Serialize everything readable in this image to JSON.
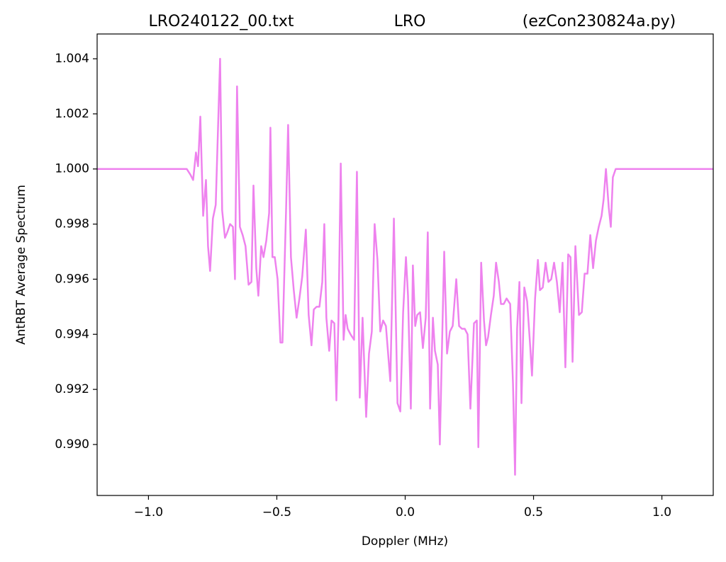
{
  "chart_data": {
    "type": "line",
    "title": [
      "LRO240122_00.txt",
      "LRO",
      "(ezCon230824a.py)"
    ],
    "x_label": "Doppler (MHz)",
    "y_label": "AntRBT Average Spectrum",
    "xlim": [
      -1.2,
      1.2
    ],
    "ylim": [
      0.98815,
      1.0049
    ],
    "xticks": [
      {
        "value": -1,
        "label": "−1.0"
      },
      {
        "value": -0.5,
        "label": "−0.5"
      },
      {
        "value": 0,
        "label": "0.0"
      },
      {
        "value": 0.5,
        "label": "0.5"
      },
      {
        "value": 1,
        "label": "1.0"
      }
    ],
    "yticks": [
      {
        "value": 0.99,
        "label": "0.990"
      },
      {
        "value": 0.992,
        "label": "0.992"
      },
      {
        "value": 0.994,
        "label": "0.994"
      },
      {
        "value": 0.996,
        "label": "0.996"
      },
      {
        "value": 0.998,
        "label": "0.998"
      },
      {
        "value": 1,
        "label": "1.000"
      },
      {
        "value": 1.002,
        "label": "1.002"
      },
      {
        "value": 1.004,
        "label": "1.004"
      }
    ],
    "grid": false,
    "series": [
      {
        "color": "#ee82ee",
        "x": [
          -1.2,
          -0.851,
          -0.837,
          -0.826,
          -0.815,
          -0.807,
          -0.798,
          -0.787,
          -0.776,
          -0.768,
          -0.76,
          -0.749,
          -0.738,
          -0.721,
          -0.713,
          -0.702,
          -0.693,
          -0.682,
          -0.671,
          -0.663,
          -0.655,
          -0.644,
          -0.633,
          -0.622,
          -0.61,
          -0.599,
          -0.591,
          -0.58,
          -0.572,
          -0.561,
          -0.552,
          -0.541,
          -0.53,
          -0.525,
          -0.517,
          -0.508,
          -0.497,
          -0.486,
          -0.478,
          -0.464,
          -0.456,
          -0.445,
          -0.434,
          -0.423,
          -0.412,
          -0.401,
          -0.387,
          -0.376,
          -0.365,
          -0.356,
          -0.345,
          -0.334,
          -0.323,
          -0.315,
          -0.307,
          -0.296,
          -0.287,
          -0.276,
          -0.268,
          -0.26,
          -0.251,
          -0.24,
          -0.232,
          -0.224,
          -0.213,
          -0.199,
          -0.188,
          -0.177,
          -0.166,
          -0.152,
          -0.141,
          -0.13,
          -0.119,
          -0.108,
          -0.097,
          -0.086,
          -0.075,
          -0.058,
          -0.044,
          -0.03,
          -0.019,
          -0.008,
          0.003,
          0.011,
          0.022,
          0.03,
          0.039,
          0.047,
          0.058,
          0.069,
          0.08,
          0.088,
          0.097,
          0.108,
          0.116,
          0.127,
          0.135,
          0.144,
          0.152,
          0.163,
          0.174,
          0.185,
          0.199,
          0.21,
          0.221,
          0.232,
          0.243,
          0.254,
          0.268,
          0.279,
          0.285,
          0.296,
          0.307,
          0.315,
          0.323,
          0.334,
          0.345,
          0.354,
          0.365,
          0.373,
          0.384,
          0.395,
          0.409,
          0.42,
          0.428,
          0.436,
          0.445,
          0.453,
          0.464,
          0.475,
          0.486,
          0.494,
          0.506,
          0.517,
          0.525,
          0.536,
          0.547,
          0.558,
          0.569,
          0.58,
          0.591,
          0.602,
          0.613,
          0.624,
          0.635,
          0.644,
          0.652,
          0.663,
          0.677,
          0.688,
          0.699,
          0.71,
          0.721,
          0.732,
          0.743,
          0.754,
          0.765,
          0.773,
          0.782,
          0.793,
          0.801,
          0.809,
          0.82,
          1.2
        ],
        "values": [
          1.0,
          1.0,
          0.9998,
          0.9996,
          1.0006,
          1.0001,
          1.0019,
          0.9983,
          0.9996,
          0.9972,
          0.9963,
          0.9982,
          0.9987,
          1.004,
          0.9985,
          0.9975,
          0.9977,
          0.998,
          0.9979,
          0.996,
          1.003,
          0.9979,
          0.9976,
          0.9972,
          0.9958,
          0.9959,
          0.9994,
          0.9964,
          0.9954,
          0.9972,
          0.9968,
          0.9974,
          0.9984,
          1.0015,
          0.9968,
          0.9968,
          0.996,
          0.9937,
          0.9937,
          0.9985,
          1.0016,
          0.9968,
          0.9956,
          0.9946,
          0.9953,
          0.9961,
          0.9978,
          0.9947,
          0.9936,
          0.9949,
          0.995,
          0.995,
          0.9959,
          0.998,
          0.9946,
          0.9934,
          0.9945,
          0.9944,
          0.9916,
          0.9945,
          1.0002,
          0.9938,
          0.9947,
          0.9942,
          0.994,
          0.9938,
          0.9999,
          0.9917,
          0.9946,
          0.991,
          0.9933,
          0.9941,
          0.998,
          0.9967,
          0.9941,
          0.9945,
          0.9943,
          0.9923,
          0.9982,
          0.9915,
          0.9912,
          0.9948,
          0.9968,
          0.9954,
          0.9913,
          0.9965,
          0.9943,
          0.9947,
          0.9948,
          0.9935,
          0.9946,
          0.9977,
          0.9913,
          0.9946,
          0.9934,
          0.9929,
          0.99,
          0.9938,
          0.997,
          0.9933,
          0.9941,
          0.9943,
          0.996,
          0.9943,
          0.9942,
          0.9942,
          0.994,
          0.9913,
          0.9944,
          0.9945,
          0.9899,
          0.9966,
          0.9945,
          0.9936,
          0.9939,
          0.9947,
          0.9954,
          0.9966,
          0.9959,
          0.9951,
          0.9951,
          0.9953,
          0.9951,
          0.9922,
          0.9889,
          0.9942,
          0.9959,
          0.9915,
          0.9957,
          0.9952,
          0.9937,
          0.9925,
          0.9953,
          0.9967,
          0.9956,
          0.9957,
          0.9966,
          0.9959,
          0.996,
          0.9966,
          0.9959,
          0.9948,
          0.9966,
          0.9928,
          0.9969,
          0.9968,
          0.993,
          0.9972,
          0.9947,
          0.9948,
          0.9962,
          0.9962,
          0.9976,
          0.9964,
          0.9974,
          0.9979,
          0.9983,
          0.9989,
          1.0,
          0.9986,
          0.9979,
          0.9997,
          1.0,
          1.0
        ]
      }
    ]
  }
}
